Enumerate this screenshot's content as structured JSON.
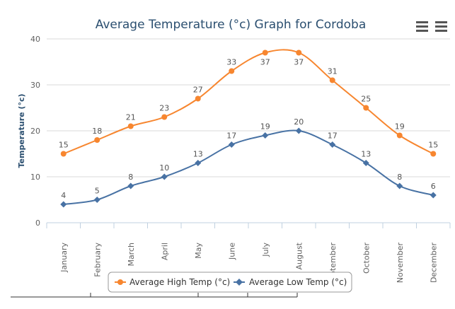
{
  "chart_data": {
    "type": "line",
    "title": "Average Temperature (°c) Graph for Cordoba",
    "ylabel": "Temperature (°c)",
    "xlabel": "",
    "categories": [
      "January",
      "February",
      "March",
      "April",
      "May",
      "June",
      "July",
      "August",
      "September",
      "October",
      "November",
      "December"
    ],
    "ylim": [
      0,
      40
    ],
    "yticks": [
      0,
      10,
      20,
      30,
      40
    ],
    "grid": true,
    "legend": "bottom-center",
    "series": [
      {
        "name": "Average High Temp (°c)",
        "color": "#f7862f",
        "marker": "circle",
        "values": [
          15,
          18,
          21,
          23,
          27,
          33,
          37,
          37,
          31,
          25,
          19,
          15
        ]
      },
      {
        "name": "Average Low Temp (°c)",
        "color": "#4872a4",
        "marker": "diamond",
        "values": [
          4,
          5,
          8,
          10,
          13,
          17,
          19,
          20,
          17,
          13,
          8,
          6
        ]
      }
    ]
  },
  "menu": {
    "icon": "hamburger-icon"
  }
}
